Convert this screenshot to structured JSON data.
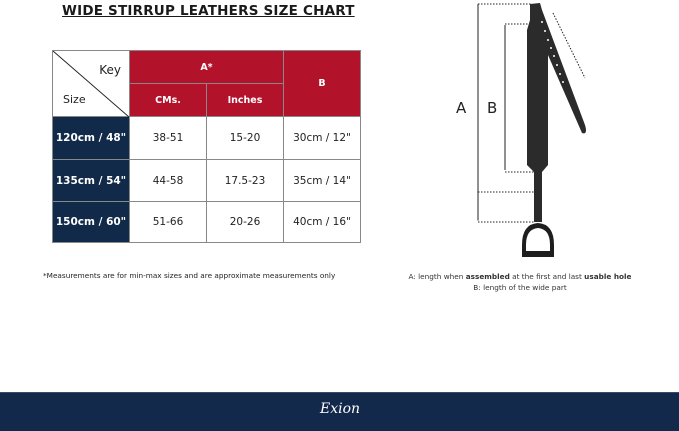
{
  "title": "WIDE STIRRUP LEATHERS  SIZE CHART",
  "table": {
    "key_label": "Key",
    "size_label": "Size",
    "group_a": "A*",
    "col_cms": "CMs.",
    "col_inches": "Inches",
    "col_b": "B",
    "rows": [
      {
        "size": "120cm / 48\"",
        "cms": "38-51",
        "inches": "15-20",
        "b": "30cm / 12\""
      },
      {
        "size": "135cm / 54\"",
        "cms": "44-58",
        "inches": "17.5-23",
        "b": "35cm / 14\""
      },
      {
        "size": "150cm / 60\"",
        "cms": "51-66",
        "inches": "20-26",
        "b": "40cm / 16\""
      }
    ]
  },
  "note": "*Measurements are for min-max sizes and are approximate measurements only",
  "diagram": {
    "label_a": "A",
    "label_b": "B",
    "caption_a_pre": "A: length when ",
    "caption_a_b1": "assembled",
    "caption_a_mid": " at the first and last ",
    "caption_a_b2": "usable hole",
    "caption_b": "B: length of the wide part"
  },
  "footer": {
    "logo": "Exion"
  },
  "colors": {
    "red": "#b3122b",
    "navy": "#122a4a",
    "footer": "#13294b"
  }
}
